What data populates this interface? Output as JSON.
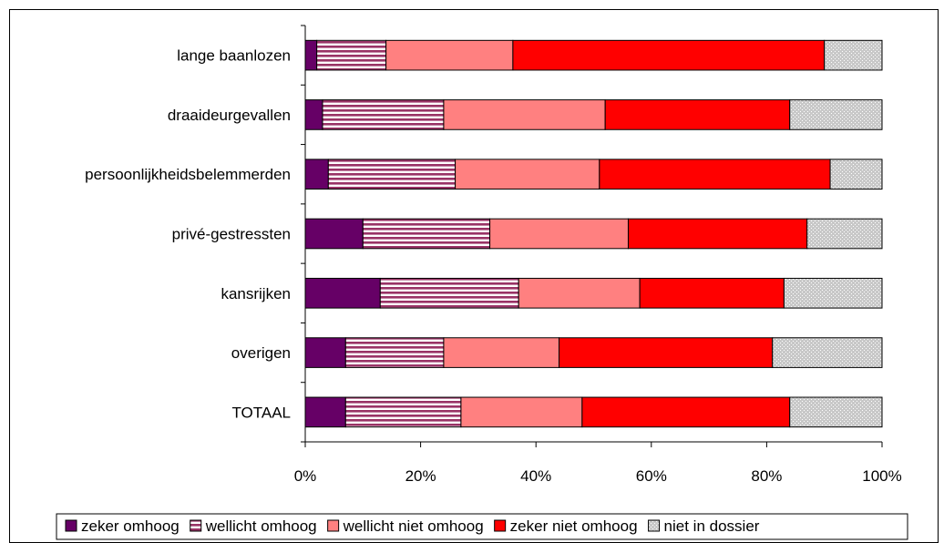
{
  "chart_data": {
    "type": "bar",
    "orientation": "horizontal",
    "stacked": "percent",
    "categories": [
      "lange baanlozen",
      "draaideurgevallen",
      "persoonlijkheidsbelemmerden",
      "privé-gestressten",
      "kansrijken",
      "overigen",
      "TOTAAL"
    ],
    "series": [
      {
        "name": "zeker omhoog",
        "color": "#660066",
        "pattern": "solid",
        "values": [
          2,
          3,
          4,
          10,
          13,
          7,
          7
        ]
      },
      {
        "name": "wellicht omhoog",
        "color": "#993366",
        "pattern": "horizontal-stripes",
        "values": [
          12,
          21,
          22,
          22,
          24,
          17,
          20
        ]
      },
      {
        "name": "wellicht niet omhoog",
        "color": "#ff8080",
        "pattern": "solid",
        "values": [
          22,
          28,
          25,
          24,
          21,
          20,
          21
        ]
      },
      {
        "name": "zeker niet omhoog",
        "color": "#ff0000",
        "pattern": "solid",
        "values": [
          54,
          32,
          40,
          31,
          25,
          37,
          36
        ]
      },
      {
        "name": "niet in dossier",
        "color": "#c0c0c0",
        "pattern": "dotted",
        "values": [
          10,
          16,
          9,
          13,
          17,
          19,
          16
        ]
      }
    ],
    "xlim": [
      0,
      100
    ],
    "xticks": [
      "0%",
      "20%",
      "40%",
      "60%",
      "80%",
      "100%"
    ],
    "legend_position": "bottom",
    "grid": false
  }
}
